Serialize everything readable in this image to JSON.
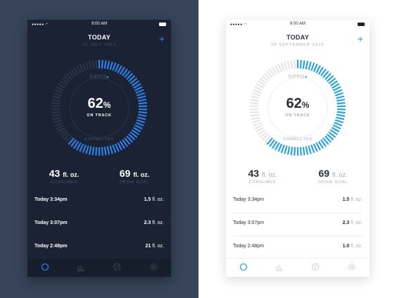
{
  "dark": {
    "status": {
      "time": "9:00 AM"
    },
    "title": "TODAY",
    "date": "26 JULY 2015",
    "brand": "SIPPO",
    "percent": "62",
    "percent_symbol": "%",
    "progress": 0.62,
    "on_track": "ON TRACK",
    "connected": "CONNECTED",
    "consumed": {
      "value": "43",
      "unit": "fl. oz.",
      "label": "CONSUMED"
    },
    "goal": {
      "value": "69",
      "unit": "fl. oz.",
      "label": "DRINK GOAL"
    },
    "entries": [
      {
        "time": "Today 3:34pm",
        "amount": "1.5",
        "unit": "fl. oz."
      },
      {
        "time": "Today 3:07pm",
        "amount": "2.3",
        "unit": "fl. oz."
      },
      {
        "time": "Today 2:48pm",
        "amount": "21",
        "unit": "fl. oz."
      }
    ],
    "tabs": [
      "home-icon",
      "stats-icon",
      "compass-icon",
      "settings-icon"
    ],
    "colors": {
      "accent": "#2f7fe6",
      "background": "#1a2233",
      "track": "#2b3446"
    }
  },
  "light": {
    "status": {
      "time": "9:00 AM"
    },
    "title": "TODAY",
    "date": "29 SEPTEMBER 2015",
    "brand": "SIPPO",
    "percent": "62",
    "percent_symbol": "%",
    "progress": 0.62,
    "on_track": "ON TRACK",
    "connected": "CONNECTED",
    "consumed": {
      "value": "43",
      "unit": "fl. oz.",
      "label": "CONSUMED"
    },
    "goal": {
      "value": "69",
      "unit": "fl. oz.",
      "label": "DRINK GOAL"
    },
    "entries": [
      {
        "time": "Today 3:34pm",
        "amount": "1.5",
        "unit": "fl. oz."
      },
      {
        "time": "Today 3:07pm",
        "amount": "2.3",
        "unit": "fl. oz."
      },
      {
        "time": "Today 2:48pm",
        "amount": "1.0",
        "unit": "fl. oz."
      }
    ],
    "tabs": [
      "home-icon",
      "stats-icon",
      "compass-icon",
      "settings-icon"
    ],
    "colors": {
      "accent": "#2aa3e0",
      "background": "#ffffff",
      "track": "#e6e6e6"
    }
  }
}
